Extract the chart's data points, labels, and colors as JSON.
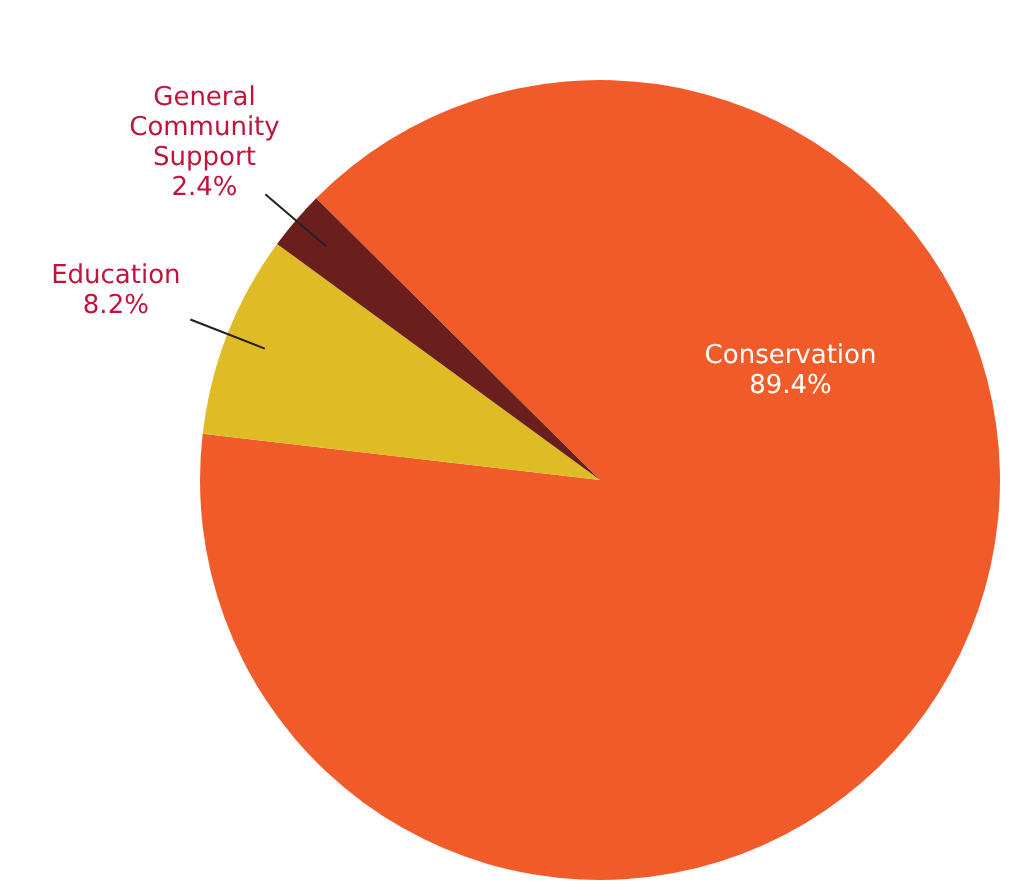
{
  "chart_data": {
    "type": "pie",
    "categories": [
      "Conservation",
      "Education",
      "General Community Support"
    ],
    "values": [
      89.4,
      8.2,
      2.4
    ],
    "value_labels": [
      "89.4%",
      "8.2%",
      "2.4%"
    ],
    "colors": [
      "#f15a29",
      "#dfbb26",
      "#6b1f1d"
    ]
  }
}
